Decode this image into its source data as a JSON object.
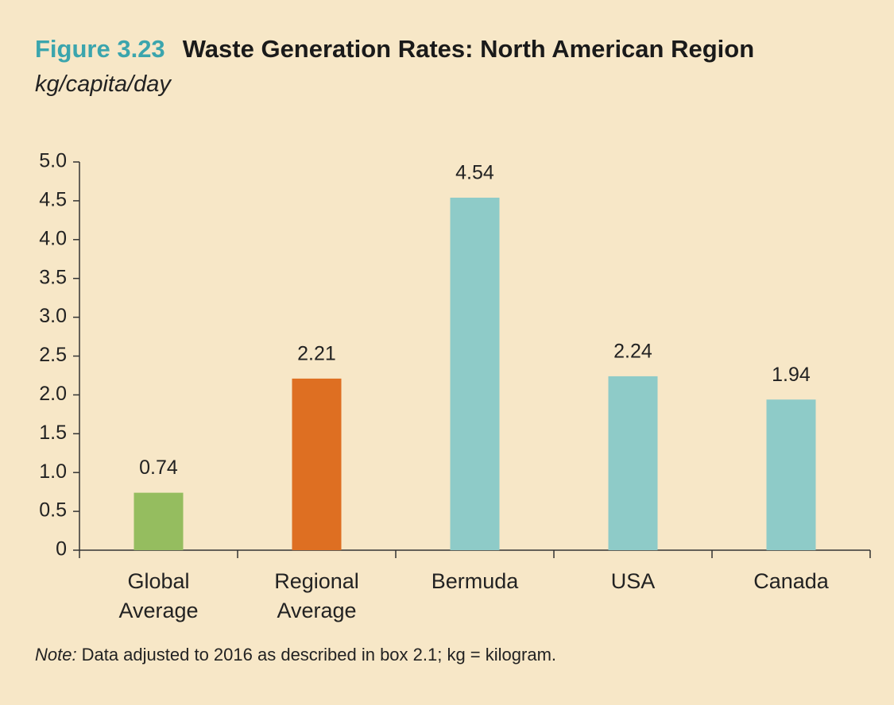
{
  "chart_data": {
    "type": "bar",
    "figure_label": "Figure 3.23",
    "title": "Waste Generation Rates: North American Region",
    "subtitle": "kg/capita/day",
    "categories": [
      "Global Average",
      "Regional Average",
      "Bermuda",
      "USA",
      "Canada"
    ],
    "values": [
      0.74,
      2.21,
      4.54,
      2.24,
      1.94
    ],
    "colors": [
      "#95bd5f",
      "#de6f22",
      "#8ecbc8",
      "#8ecbc8",
      "#8ecbc8"
    ],
    "ylim": [
      0,
      5
    ],
    "yticks": [
      0,
      0.5,
      {
        "value": 1,
        "label": "1.0"
      },
      1.5,
      {
        "value": 2,
        "label": "2.0"
      },
      2.5,
      {
        "value": 3,
        "label": "3.0"
      },
      3.5,
      {
        "value": 4,
        "label": "4.0"
      },
      4.5,
      {
        "value": 5,
        "label": "5.0"
      }
    ],
    "grid": false,
    "note_label": "Note:",
    "note": "Data adjusted to 2016 as described in box 2.1; kg = kilogram."
  }
}
